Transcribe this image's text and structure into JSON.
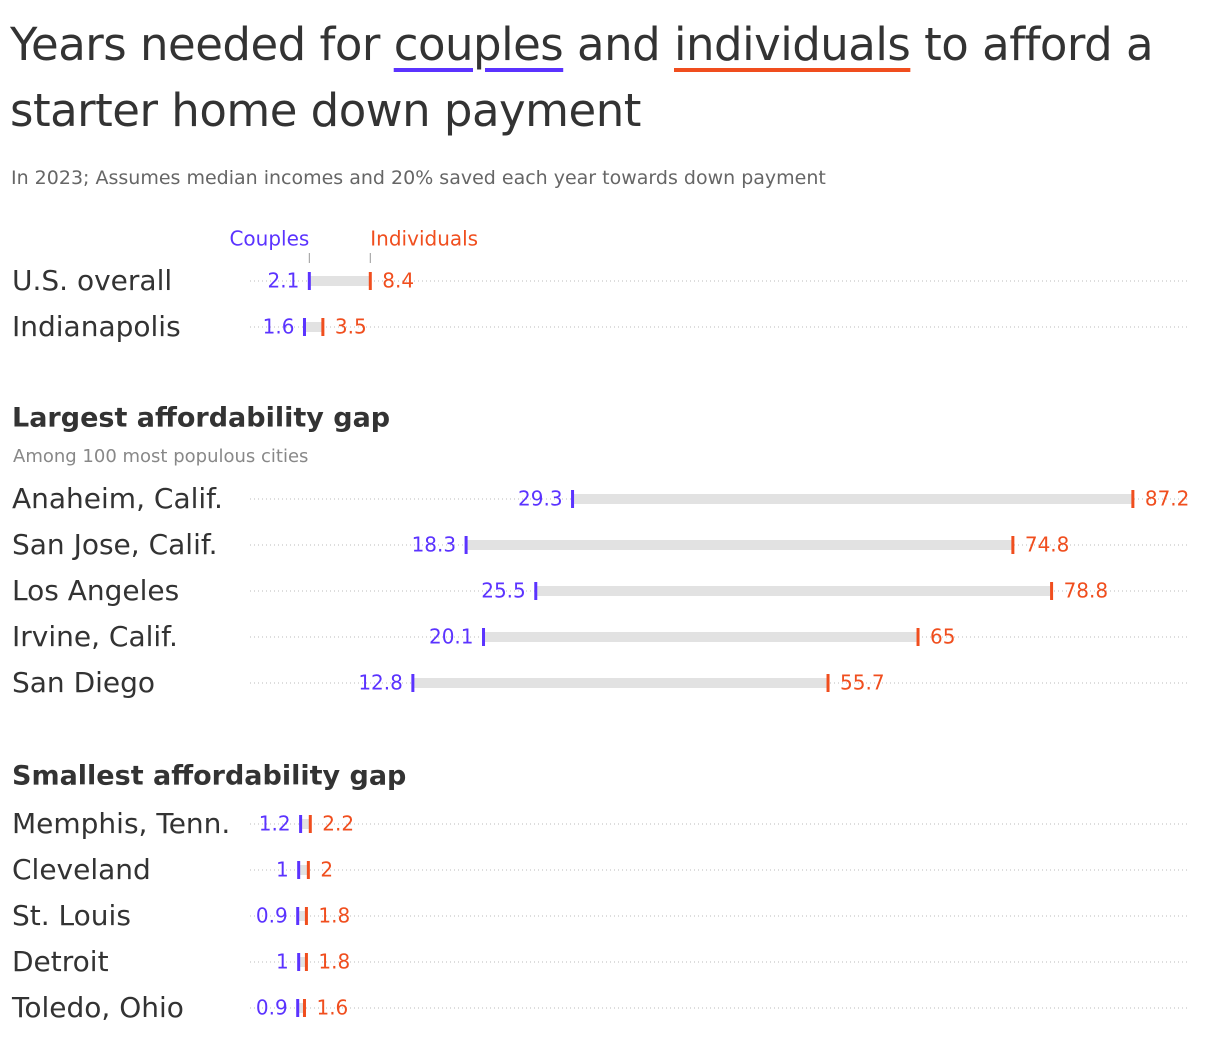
{
  "chart_data": {
    "type": "dumbbell",
    "title": [
      "Years needed for ",
      "couples",
      " and ",
      "individuals",
      " to afford a starter home down payment"
    ],
    "subtitle": "In 2023; Assumes median incomes and 20% saved each year towards down payment",
    "series": [
      {
        "name": "Couples",
        "color": "#5b33ff"
      },
      {
        "name": "Individuals",
        "color": "#f04e1e"
      }
    ],
    "xlim": [
      0,
      93
    ],
    "groups": [
      {
        "categories": [
          "U.S. overall",
          "Indianapolis"
        ],
        "series": [
          {
            "values": [
              2.1,
              1.6
            ]
          },
          {
            "values": [
              8.4,
              3.5
            ]
          }
        ]
      },
      {
        "title": "Largest affordability gap",
        "subtitle": "Among 100 most populous cities",
        "categories": [
          "Anaheim, Calif.",
          "San Jose, Calif.",
          "Los Angeles",
          "Irvine, Calif.",
          "San Diego"
        ],
        "series": [
          {
            "values": [
              29.3,
              18.3,
              25.5,
              20.1,
              12.8
            ]
          },
          {
            "values": [
              87.2,
              74.8,
              78.8,
              65,
              55.7
            ]
          }
        ]
      },
      {
        "title": "Smallest affordability gap",
        "categories": [
          "Memphis, Tenn.",
          "Cleveland",
          "St. Louis",
          "Detroit",
          "Toledo, Ohio"
        ],
        "series": [
          {
            "values": [
              1.2,
              1,
              0.9,
              1,
              0.9
            ]
          },
          {
            "values": [
              2.2,
              2,
              1.8,
              1.8,
              1.6
            ]
          }
        ]
      }
    ]
  }
}
